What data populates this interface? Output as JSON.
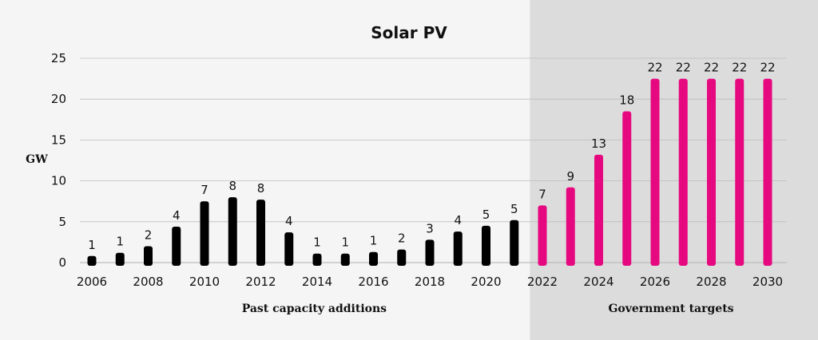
{
  "chart_data": {
    "type": "bar",
    "title": "Solar PV",
    "ylabel": "GW",
    "ylim": [
      0,
      25
    ],
    "yticks": [
      0,
      5,
      10,
      15,
      20,
      25
    ],
    "x": [
      2006,
      2007,
      2008,
      2009,
      2010,
      2011,
      2012,
      2013,
      2014,
      2015,
      2016,
      2017,
      2018,
      2019,
      2020,
      2021,
      2022,
      2023,
      2024,
      2025,
      2026,
      2027,
      2028,
      2029,
      2030
    ],
    "xtick_labels": [
      "2006",
      "2008",
      "2010",
      "2012",
      "2014",
      "2016",
      "2018",
      "2020",
      "2022",
      "2024",
      "2026",
      "2028",
      "2030"
    ],
    "series": [
      {
        "values": [
          0.8,
          1.2,
          2.0,
          4.4,
          7.5,
          8.0,
          7.7,
          3.7,
          1.1,
          1.1,
          1.3,
          1.6,
          2.8,
          3.8,
          4.5,
          5.2,
          null,
          null,
          null,
          null,
          null,
          null,
          null,
          null,
          null
        ],
        "labels": [
          "1",
          "1",
          "2",
          "4",
          "7",
          "8",
          "8",
          "4",
          "1",
          "1",
          "1",
          "2",
          "3",
          "4",
          "5",
          "5",
          "",
          "",
          "",
          "",
          "",
          "",
          "",
          "",
          ""
        ],
        "color": "#000000"
      },
      {
        "values": [
          null,
          null,
          null,
          null,
          null,
          null,
          null,
          null,
          null,
          null,
          null,
          null,
          null,
          null,
          null,
          null,
          7.0,
          9.2,
          13.2,
          18.5,
          22.5,
          22.5,
          22.5,
          22.5,
          22.5
        ],
        "labels": [
          "",
          "",
          "",
          "",
          "",
          "",
          "",
          "",
          "",
          "",
          "",
          "",
          "",
          "",
          "",
          "",
          "7",
          "9",
          "13",
          "18",
          "22",
          "22",
          "22",
          "22",
          "22"
        ],
        "color": "#e6087f"
      }
    ],
    "regions": [
      {
        "label": "Past capacity additions",
        "from": 2006,
        "to": 2021
      },
      {
        "label": "Government targets",
        "from": 2022,
        "to": 2030,
        "shaded": true
      }
    ],
    "colors": {
      "background": "#f4f5f4",
      "shade": "#dcdcdc",
      "grid": "#bdbdbd"
    },
    "grid": true
  }
}
